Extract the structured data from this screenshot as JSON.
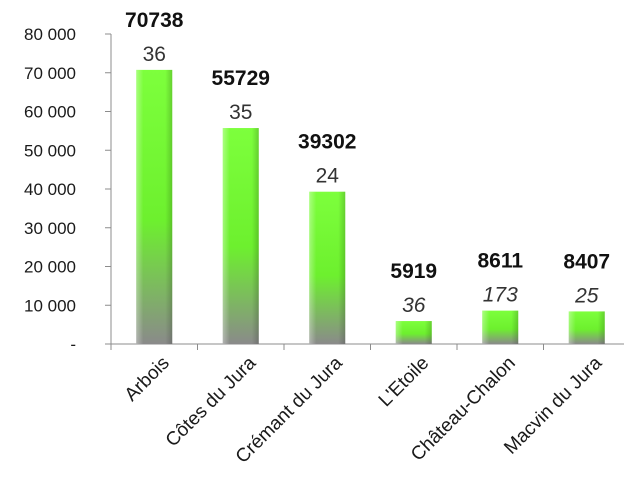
{
  "chart_data": {
    "type": "bar",
    "categories": [
      "Arbois",
      "Côtes du Jura",
      "Crémant du Jura",
      "L'Etoile",
      "Château-Chalon",
      "Macvin du Jura"
    ],
    "values": [
      70738,
      55729,
      39302,
      5919,
      8611,
      8407
    ],
    "secondary_labels": [
      "36",
      "35",
      "24",
      "36",
      "173",
      "25"
    ],
    "secondary_italic": [
      false,
      false,
      false,
      true,
      true,
      true
    ],
    "y_ticks": [
      {
        "value": 0,
        "label": "-"
      },
      {
        "value": 10000,
        "label": "10 000"
      },
      {
        "value": 20000,
        "label": "20 000"
      },
      {
        "value": 30000,
        "label": "30 000"
      },
      {
        "value": 40000,
        "label": "40 000"
      },
      {
        "value": 50000,
        "label": "50 000"
      },
      {
        "value": 60000,
        "label": "60 000"
      },
      {
        "value": 70000,
        "label": "70 000"
      },
      {
        "value": 80000,
        "label": "80 000"
      }
    ],
    "ylim": [
      0,
      80000
    ],
    "title": "",
    "xlabel": "",
    "ylabel": "",
    "grid": false,
    "legend": "none",
    "colors": {
      "bar_top": "#7dff3c",
      "bar_bottom": "#8a8a8a",
      "axis": "#8c8c8c"
    }
  }
}
